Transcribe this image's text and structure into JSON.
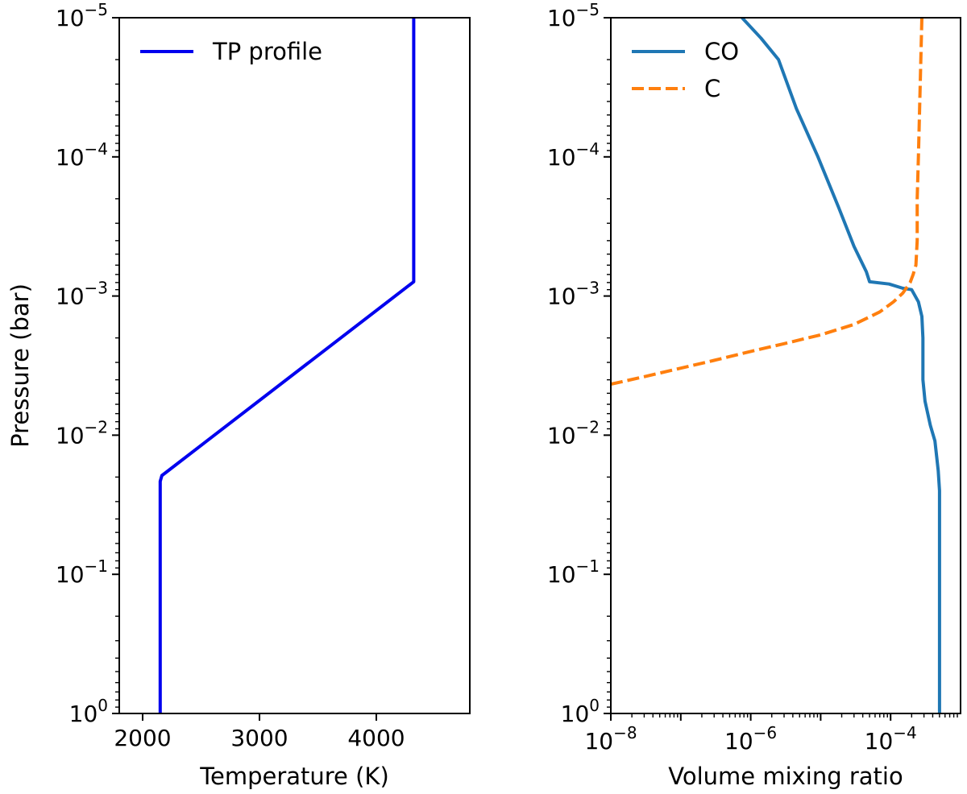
{
  "chart_data": [
    {
      "type": "line",
      "panel": "left",
      "xlabel": "Temperature (K)",
      "ylabel": "Pressure (bar)",
      "xscale": "linear",
      "yscale": "log",
      "xlim": [
        1800,
        4800
      ],
      "ylim": [
        1,
        1e-05
      ],
      "xticks": [
        2000,
        3000,
        4000
      ],
      "xtick_labels": [
        "2000",
        "3000",
        "4000"
      ],
      "yticks": [
        {
          "value": 1e-05,
          "base": "10",
          "exp": "−5"
        },
        {
          "value": 0.0001,
          "base": "10",
          "exp": "−4"
        },
        {
          "value": 0.001,
          "base": "10",
          "exp": "−3"
        },
        {
          "value": 0.01,
          "base": "10",
          "exp": "−2"
        },
        {
          "value": 0.1,
          "base": "10",
          "exp": "−1"
        },
        {
          "value": 1,
          "base": "10",
          "exp": "0"
        }
      ],
      "legend": {
        "location": "upper-left"
      },
      "series": [
        {
          "name": "TP profile",
          "color": "#0000ee",
          "style": "solid",
          "x": [
            2150,
            2150,
            2165,
            2200,
            4320,
            4320
          ],
          "y": [
            1,
            0.0215,
            0.0195,
            0.0185,
            0.00079,
            1e-05
          ]
        }
      ]
    },
    {
      "type": "line",
      "panel": "right",
      "xlabel": "Volume mixing ratio",
      "ylabel": "",
      "xscale": "log",
      "yscale": "log",
      "xlim": [
        1e-08,
        0.001
      ],
      "ylim": [
        1,
        1e-05
      ],
      "xticks": [
        {
          "value": 1e-08,
          "base": "10",
          "exp": "−8"
        },
        {
          "value": 1e-06,
          "base": "10",
          "exp": "−6"
        },
        {
          "value": 0.0001,
          "base": "10",
          "exp": "−4"
        }
      ],
      "yticks": [
        {
          "value": 1e-05,
          "base": "10",
          "exp": "−5"
        },
        {
          "value": 0.0001,
          "base": "10",
          "exp": "−4"
        },
        {
          "value": 0.001,
          "base": "10",
          "exp": "−3"
        },
        {
          "value": 0.01,
          "base": "10",
          "exp": "−2"
        },
        {
          "value": 0.1,
          "base": "10",
          "exp": "−1"
        },
        {
          "value": 1,
          "base": "10",
          "exp": "0"
        }
      ],
      "legend": {
        "location": "upper-left"
      },
      "series": [
        {
          "name": "CO",
          "color": "#1f77b4",
          "style": "solid",
          "x": [
            0.0005,
            0.0005,
            0.00048,
            0.00043,
            0.00037,
            0.00031,
            0.00029,
            0.00029,
            0.00028,
            0.00025,
            0.0002,
            0.00015,
            9.5e-05,
            5e-05,
            4.5e-05,
            3e-05,
            1.8e-05,
            9e-06,
            4.5e-06,
            2.5e-06,
            1.4e-06,
            7.5e-07
          ],
          "y": [
            1,
            0.025,
            0.018,
            0.011,
            0.0085,
            0.0057,
            0.004,
            0.002,
            0.0014,
            0.0011,
            0.0009,
            0.00088,
            0.00082,
            0.00079,
            0.00067,
            0.00044,
            0.00023,
            9.8e-05,
            4.5e-05,
            2e-05,
            1.4e-05,
            1e-05
          ]
        },
        {
          "name": "C",
          "color": "#ff7f0e",
          "style": "dashed",
          "x": [
            1e-08,
            3e-08,
            1e-07,
            3e-07,
            1e-06,
            3e-06,
            1e-05,
            3e-05,
            7e-05,
            0.00011,
            0.00015,
            0.00019,
            0.00021,
            0.00023,
            0.00024,
            0.00024,
            0.00025,
            0.00028
          ],
          "y": [
            0.0043,
            0.0038,
            0.0033,
            0.0029,
            0.0025,
            0.0022,
            0.0019,
            0.0016,
            0.0013,
            0.0011,
            0.00095,
            0.0008,
            0.0007,
            0.0006,
            0.0004,
            0.0002,
            0.0001,
            1e-05
          ]
        }
      ]
    }
  ]
}
